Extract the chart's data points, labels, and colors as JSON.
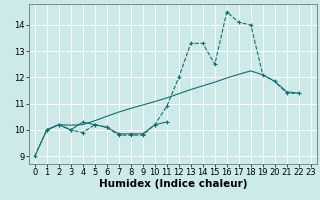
{
  "line1_x": [
    0,
    1,
    2,
    3,
    4,
    5,
    6,
    7,
    8,
    9,
    10,
    11,
    12,
    13,
    14,
    15,
    16,
    17,
    18,
    19,
    20,
    21,
    22
  ],
  "line1_y": [
    9,
    10,
    10.2,
    10.0,
    9.9,
    10.2,
    10.1,
    9.8,
    9.8,
    9.8,
    10.2,
    10.9,
    12.0,
    13.3,
    13.3,
    12.5,
    14.5,
    14.1,
    14.0,
    12.1,
    11.85,
    11.4,
    11.4
  ],
  "line2_x": [
    1,
    2,
    3,
    4,
    5,
    6,
    7,
    8,
    9,
    10,
    11
  ],
  "line2_y": [
    10,
    10.2,
    10.0,
    10.3,
    10.2,
    10.1,
    9.85,
    9.85,
    9.85,
    10.2,
    10.3
  ],
  "line3_x": [
    0,
    1,
    2,
    3,
    4,
    5,
    6,
    7,
    8,
    9,
    10,
    11,
    12,
    13,
    14,
    15,
    16,
    17,
    18,
    19,
    20,
    21,
    22
  ],
  "line3_y": [
    9,
    10,
    10.2,
    10.18,
    10.2,
    10.35,
    10.52,
    10.68,
    10.82,
    10.95,
    11.08,
    11.22,
    11.38,
    11.54,
    11.68,
    11.82,
    11.98,
    12.12,
    12.25,
    12.1,
    11.85,
    11.45,
    11.4
  ],
  "xlabel": "Humidex (Indice chaleur)",
  "xlim": [
    -0.5,
    23.5
  ],
  "ylim": [
    8.7,
    14.8
  ],
  "yticks": [
    9,
    10,
    11,
    12,
    13,
    14
  ],
  "xticks": [
    0,
    1,
    2,
    3,
    4,
    5,
    6,
    7,
    8,
    9,
    10,
    11,
    12,
    13,
    14,
    15,
    16,
    17,
    18,
    19,
    20,
    21,
    22,
    23
  ],
  "xtick_labels": [
    "0",
    "1",
    "2",
    "3",
    "4",
    "5",
    "6",
    "7",
    "8",
    "9",
    "10",
    "11",
    "12",
    "13",
    "14",
    "15",
    "16",
    "17",
    "18",
    "19",
    "20",
    "21",
    "22",
    "23"
  ],
  "bg_color": "#cceaea",
  "grid_color": "#ffffff",
  "line_color": "#1a6b6b",
  "tick_fontsize": 6,
  "label_fontsize": 7.5
}
